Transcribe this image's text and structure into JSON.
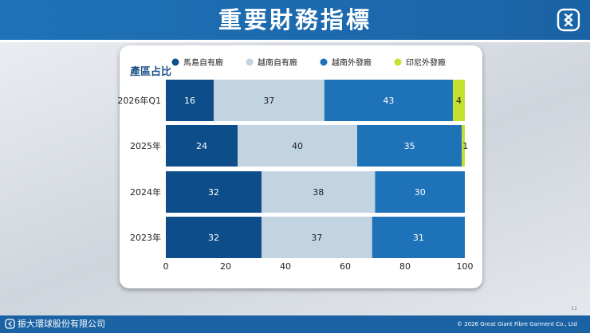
{
  "slide": {
    "title": "重要財務指標",
    "page_number": "11",
    "company": "振大環球股份有限公司",
    "copyright": "© 2026 Great Giant Fibre Garment Co., Ltd"
  },
  "colors": {
    "header": "#1f72b8",
    "footer": "#1a62a4",
    "text": "#1a1a1a",
    "axis_text": "#222222"
  },
  "chart_data": {
    "type": "bar",
    "orientation": "horizontal",
    "stacked": true,
    "title": "產區占比",
    "categories": [
      "2026年Q1",
      "2025年",
      "2024年",
      "2023年"
    ],
    "series": [
      {
        "name": "馬島自有廠",
        "color": "#0d4d8a",
        "values": [
          16,
          24,
          32,
          32
        ]
      },
      {
        "name": "越南自有廠",
        "color": "#c2d3e2",
        "values": [
          37,
          40,
          38,
          37
        ]
      },
      {
        "name": "越南外發廠",
        "color": "#1d72b8",
        "values": [
          43,
          35,
          30,
          31
        ]
      },
      {
        "name": "印尼外發廠",
        "color": "#c6e02e",
        "values": [
          4,
          1,
          0,
          0
        ]
      }
    ],
    "value_labels": [
      [
        "16",
        "37",
        "43",
        "4"
      ],
      [
        "24",
        "40",
        "35",
        "1"
      ],
      [
        "32",
        "38",
        "30",
        ""
      ],
      [
        "32",
        "37",
        "31",
        ""
      ]
    ],
    "xlim": [
      0,
      100
    ],
    "xticks": [
      "0",
      "20",
      "40",
      "60",
      "80",
      "100"
    ],
    "grid": false,
    "legend_position": "top"
  }
}
